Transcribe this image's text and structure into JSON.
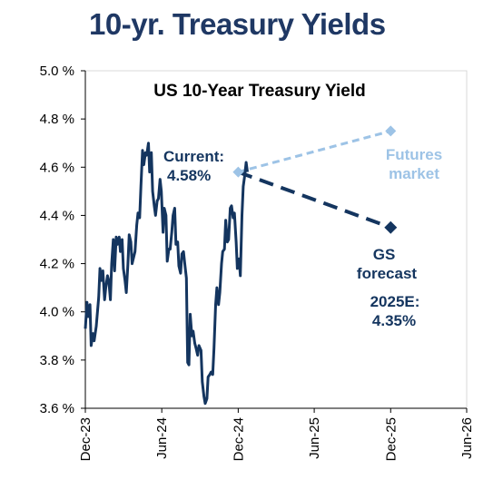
{
  "page": {
    "title": "10-yr. Treasury Yields"
  },
  "colors": {
    "dark": "#14355f",
    "light": "#9dc3e6",
    "title": "#1f3864"
  },
  "chart_data": {
    "type": "line",
    "title": "US 10-Year Treasury Yield",
    "xlabel": "",
    "ylabel": "",
    "ylim": [
      3.6,
      5.0
    ],
    "y_ticks": [
      "3.6 %",
      "3.8 %",
      "4.0 %",
      "4.2 %",
      "4.4 %",
      "4.6 %",
      "4.8 %",
      "5.0 %"
    ],
    "x_ticks": [
      "Dec-23",
      "Jun-24",
      "Dec-24",
      "Jun-25",
      "Dec-25",
      "Jun-26"
    ],
    "xlim": [
      "2023-12-01",
      "2026-06-01"
    ],
    "grid": false,
    "series": [
      {
        "style": "solid",
        "points": [
          [
            "2023-12-01",
            3.93
          ],
          [
            "2023-12-05",
            4.04
          ],
          [
            "2023-12-08",
            3.98
          ],
          [
            "2023-12-12",
            4.03
          ],
          [
            "2023-12-15",
            3.86
          ],
          [
            "2023-12-19",
            3.91
          ],
          [
            "2023-12-22",
            3.88
          ],
          [
            "2023-12-27",
            3.94
          ],
          [
            "2024-01-02",
            4.06
          ],
          [
            "2024-01-05",
            4.18
          ],
          [
            "2024-01-09",
            4.13
          ],
          [
            "2024-01-12",
            4.17
          ],
          [
            "2024-01-16",
            4.05
          ],
          [
            "2024-01-19",
            4.1
          ],
          [
            "2024-01-23",
            4.15
          ],
          [
            "2024-01-26",
            4.13
          ],
          [
            "2024-01-30",
            4.05
          ],
          [
            "2024-02-02",
            4.2
          ],
          [
            "2024-02-06",
            4.3
          ],
          [
            "2024-02-09",
            4.17
          ],
          [
            "2024-02-13",
            4.31
          ],
          [
            "2024-02-16",
            4.28
          ],
          [
            "2024-02-20",
            4.31
          ],
          [
            "2024-02-23",
            4.25
          ],
          [
            "2024-02-27",
            4.3
          ],
          [
            "2024-03-01",
            4.18
          ],
          [
            "2024-03-05",
            4.13
          ],
          [
            "2024-03-08",
            4.08
          ],
          [
            "2024-03-12",
            4.2
          ],
          [
            "2024-03-15",
            4.32
          ],
          [
            "2024-03-19",
            4.29
          ],
          [
            "2024-03-22",
            4.2
          ],
          [
            "2024-03-26",
            4.23
          ],
          [
            "2024-03-29",
            4.25
          ],
          [
            "2024-04-02",
            4.36
          ],
          [
            "2024-04-05",
            4.41
          ],
          [
            "2024-04-09",
            4.39
          ],
          [
            "2024-04-12",
            4.52
          ],
          [
            "2024-04-16",
            4.67
          ],
          [
            "2024-04-19",
            4.61
          ],
          [
            "2024-04-23",
            4.66
          ],
          [
            "2024-04-26",
            4.65
          ],
          [
            "2024-04-30",
            4.7
          ],
          [
            "2024-05-03",
            4.58
          ],
          [
            "2024-05-07",
            4.66
          ],
          [
            "2024-05-10",
            4.5
          ],
          [
            "2024-05-14",
            4.44
          ],
          [
            "2024-05-17",
            4.4
          ],
          [
            "2024-05-21",
            4.46
          ],
          [
            "2024-05-24",
            4.47
          ],
          [
            "2024-05-28",
            4.55
          ],
          [
            "2024-05-31",
            4.5
          ],
          [
            "2024-06-04",
            4.33
          ],
          [
            "2024-06-07",
            4.43
          ],
          [
            "2024-06-11",
            4.4
          ],
          [
            "2024-06-14",
            4.21
          ],
          [
            "2024-06-18",
            4.26
          ],
          [
            "2024-06-21",
            4.26
          ],
          [
            "2024-06-25",
            4.33
          ],
          [
            "2024-06-28",
            4.4
          ],
          [
            "2024-07-02",
            4.43
          ],
          [
            "2024-07-05",
            4.28
          ],
          [
            "2024-07-09",
            4.29
          ],
          [
            "2024-07-12",
            4.19
          ],
          [
            "2024-07-16",
            4.16
          ],
          [
            "2024-07-19",
            4.24
          ],
          [
            "2024-07-23",
            4.25
          ],
          [
            "2024-07-26",
            4.2
          ],
          [
            "2024-07-30",
            4.14
          ],
          [
            "2024-08-02",
            3.79
          ],
          [
            "2024-08-05",
            3.78
          ],
          [
            "2024-08-08",
            3.99
          ],
          [
            "2024-08-12",
            3.9
          ],
          [
            "2024-08-15",
            3.92
          ],
          [
            "2024-08-19",
            3.87
          ],
          [
            "2024-08-22",
            3.85
          ],
          [
            "2024-08-26",
            3.82
          ],
          [
            "2024-08-29",
            3.86
          ],
          [
            "2024-09-03",
            3.84
          ],
          [
            "2024-09-06",
            3.71
          ],
          [
            "2024-09-10",
            3.65
          ],
          [
            "2024-09-13",
            3.62
          ],
          [
            "2024-09-17",
            3.64
          ],
          [
            "2024-09-20",
            3.73
          ],
          [
            "2024-09-24",
            3.74
          ],
          [
            "2024-09-27",
            3.75
          ],
          [
            "2024-10-01",
            3.74
          ],
          [
            "2024-10-04",
            3.85
          ],
          [
            "2024-10-08",
            4.03
          ],
          [
            "2024-10-11",
            4.1
          ],
          [
            "2024-10-15",
            4.03
          ],
          [
            "2024-10-18",
            4.08
          ],
          [
            "2024-10-22",
            4.2
          ],
          [
            "2024-10-25",
            4.25
          ],
          [
            "2024-10-29",
            4.26
          ],
          [
            "2024-11-01",
            4.38
          ],
          [
            "2024-11-05",
            4.29
          ],
          [
            "2024-11-08",
            4.3
          ],
          [
            "2024-11-12",
            4.43
          ],
          [
            "2024-11-15",
            4.44
          ],
          [
            "2024-11-19",
            4.39
          ],
          [
            "2024-11-22",
            4.41
          ],
          [
            "2024-11-26",
            4.29
          ],
          [
            "2024-11-29",
            4.18
          ],
          [
            "2024-12-03",
            4.22
          ],
          [
            "2024-12-06",
            4.15
          ],
          [
            "2024-12-10",
            4.4
          ],
          [
            "2024-12-13",
            4.52
          ],
          [
            "2024-12-17",
            4.57
          ],
          [
            "2024-12-20",
            4.62
          ],
          [
            "2024-12-23",
            4.58
          ]
        ]
      },
      {
        "name": "Futures market",
        "style": "dashed",
        "points": [
          [
            "2024-12-01",
            4.58
          ],
          [
            "2025-12-01",
            4.75
          ]
        ]
      },
      {
        "name": "GS forecast",
        "style": "dashed",
        "points": [
          [
            "2024-12-01",
            4.58
          ],
          [
            "2025-12-01",
            4.35
          ]
        ]
      }
    ],
    "annotations": {
      "current_label": "Current:",
      "current_value": "4.58%",
      "futures_line1": "Futures",
      "futures_line2": "market",
      "gs_line1": "GS",
      "gs_line2": "forecast",
      "estimate_label": "2025E:",
      "estimate_value": "4.35%"
    }
  }
}
